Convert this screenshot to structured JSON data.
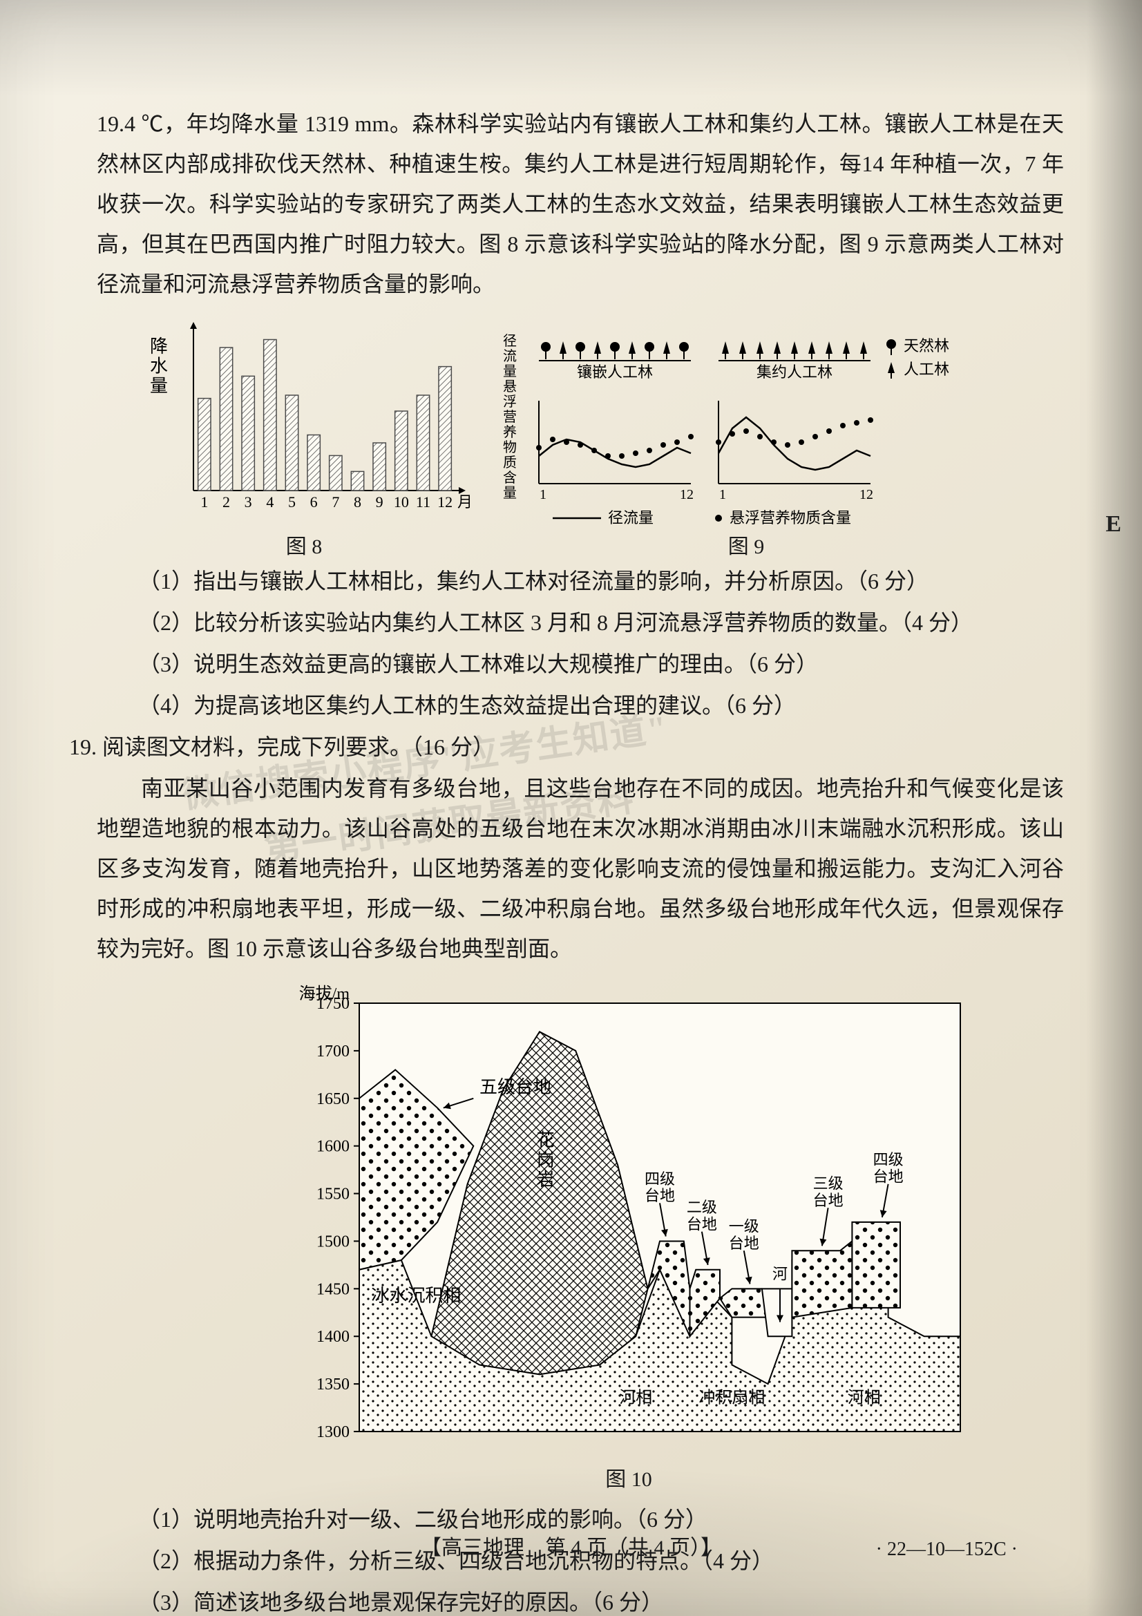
{
  "intro": {
    "p1": "19.4 ℃，年均降水量 1319 mm。森林科学实验站内有镶嵌人工林和集约人工林。镶嵌人工林是在天然林区内部成排砍伐天然林、种植速生桉。集约人工林是进行短周期轮作，每14 年种植一次，7 年收获一次。科学实验站的专家研究了两类人工林的生态水文效益，结果表明镶嵌人工林生态效益更高，但其在巴西国内推广时阻力较大。图 8 示意该科学实验站的降水分配，图 9 示意两类人工林对径流量和河流悬浮营养物质含量的影响。"
  },
  "fig8": {
    "type": "bar",
    "ylabel": "降\n水\n量",
    "xlabel_suffix": "月份",
    "categories": [
      "1",
      "2",
      "3",
      "4",
      "5",
      "6",
      "7",
      "8",
      "9",
      "10",
      "11",
      "12"
    ],
    "values": [
      58,
      90,
      72,
      95,
      60,
      35,
      22,
      12,
      30,
      50,
      60,
      78
    ],
    "ylim": [
      0,
      100
    ],
    "bar_color": "#4a4a4a",
    "bar_fill": "#ffffff",
    "bar_hatch": true,
    "axis_color": "#000000",
    "bar_width": 0.58,
    "caption": "图 8",
    "fontsize_axis": 22,
    "fontsize_label": 26
  },
  "fig9": {
    "type": "line+scatter",
    "panels": [
      {
        "title": "镶嵌人工林",
        "icons": "mixed",
        "line_values": [
          20,
          28,
          32,
          30,
          24,
          18,
          14,
          12,
          14,
          20,
          26,
          22
        ],
        "dot_values": [
          26,
          32,
          30,
          28,
          24,
          20,
          20,
          22,
          24,
          28,
          30,
          34
        ]
      },
      {
        "title": "集约人工林",
        "icons": "mono",
        "line_values": [
          22,
          40,
          48,
          40,
          28,
          18,
          12,
          10,
          12,
          18,
          24,
          20
        ],
        "dot_values": [
          30,
          36,
          38,
          34,
          30,
          28,
          30,
          34,
          38,
          42,
          44,
          46
        ]
      }
    ],
    "x_ticks": [
      "1",
      "12",
      "1",
      "12"
    ],
    "ylim": [
      0,
      60
    ],
    "ylabel": "径流量/悬浮营养物质含量",
    "legend_forest": [
      {
        "icon": "tree-broad",
        "label": "天然林"
      },
      {
        "icon": "tree-narrow",
        "label": "人工林"
      }
    ],
    "legend_series": [
      {
        "marker": "line",
        "label": "径流量"
      },
      {
        "marker": "dot",
        "label": "悬浮营养物质含量"
      }
    ],
    "line_color": "#000000",
    "dot_color": "#000000",
    "axis_color": "#000000",
    "caption": "图 9",
    "fontsize": 22
  },
  "q18": {
    "a": "（1）指出与镶嵌人工林相比，集约人工林对径流量的影响，并分析原因。（6 分）",
    "b": "（2）比较分析该实验站内集约人工林区 3 月和 8 月河流悬浮营养物质的数量。（4 分）",
    "c": "（3）说明生态效益更高的镶嵌人工林难以大规模推广的理由。（6 分）",
    "d": "（4）为提高该地区集约人工林的生态效益提出合理的建议。（6 分）"
  },
  "q19": {
    "head": "19. 阅读图文材料，完成下列要求。（16 分）",
    "p1": "南亚某山谷小范围内发育有多级台地，且这些台地存在不同的成因。地壳抬升和气候变化是该地塑造地貌的根本动力。该山谷高处的五级台地在末次冰期冰消期由冰川末端融水沉积形成。该山区多支沟发育，随着地壳抬升，山区地势落差的变化影响支流的侵蚀量和搬运能力。支沟汇入河谷时形成的冲积扇地表平坦，形成一级、二级冲积扇台地。虽然多级台地形成年代久远，但景观保存较为完好。图 10 示意该山谷多级台地典型剖面。",
    "a": "（1）说明地壳抬升对一级、二级台地形成的影响。（6 分）",
    "b": "（2）根据动力条件，分析三级、四级台地沉积物的特点。（4 分）",
    "c": "（3）简述该地多级台地景观保存完好的原因。（6 分）"
  },
  "fig10": {
    "type": "cross-section",
    "caption": "图 10",
    "y_axis": {
      "label": "海拔/m",
      "ticks": [
        1300,
        1350,
        1400,
        1450,
        1500,
        1550,
        1600,
        1650,
        1700,
        1750
      ],
      "ylim": [
        1300,
        1750
      ]
    },
    "labels": {
      "five": "五级台地",
      "ice": "冰水沉积相",
      "granite": "花\n岗\n岩",
      "four": "四级\n台地",
      "two": "二级\n台地",
      "one": "一级\n台地",
      "three": "三级\n台地",
      "four_r": "四级\n台地",
      "river": "河",
      "river_phase_l": "河相",
      "fan": "冲积扇相",
      "river_phase_r": "河相"
    },
    "colors": {
      "outline": "#000000",
      "granite_hatch": "#000000",
      "ice_dots": "#000000",
      "fan_dots": "#000000",
      "river_dots": "#000000",
      "background": "#ffffff"
    },
    "line_width": 2,
    "fontsize_axis": 24,
    "fontsize_label": 26
  },
  "footer": {
    "center": "【高三地理　第 4 页（共 4 页）】",
    "code": "· 22—10—152C ·"
  },
  "watermark": {
    "l1": "微信搜索小程序\"应考生知道\"",
    "l2": "第一时间获取最新资料"
  },
  "margin": {
    "E": "E"
  }
}
